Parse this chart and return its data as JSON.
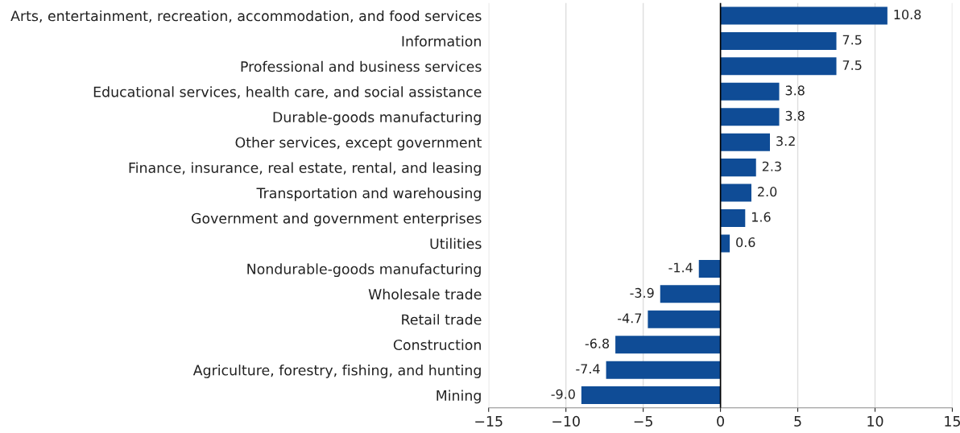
{
  "chart_data": {
    "type": "bar",
    "orientation": "horizontal",
    "categories": [
      "Arts, entertainment, recreation, accommodation, and food services",
      "Information",
      "Professional and business services",
      "Educational services, health care, and social assistance",
      "Durable-goods manufacturing",
      "Other services, except government",
      "Finance, insurance, real estate, rental, and leasing",
      "Transportation and warehousing",
      "Government and government enterprises",
      "Utilities",
      "Nondurable-goods manufacturing",
      "Wholesale trade",
      "Retail trade",
      "Construction",
      "Agriculture, forestry, fishing, and hunting",
      "Mining"
    ],
    "values": [
      10.8,
      7.5,
      7.5,
      3.8,
      3.8,
      3.2,
      2.3,
      2.0,
      1.6,
      0.6,
      -1.4,
      -3.9,
      -4.7,
      -6.8,
      -7.4,
      -9.0
    ],
    "color": "#0f4c96",
    "xlim": [
      -15,
      15
    ],
    "xticks": [
      {
        "value": -15,
        "label": "−15"
      },
      {
        "value": -10,
        "label": "−10"
      },
      {
        "value": -5,
        "label": "−5"
      },
      0,
      5,
      10,
      15
    ],
    "grid": "x",
    "value_labels": [
      "10.8",
      "7.5",
      "7.5",
      "3.8",
      "3.8",
      "3.2",
      "2.3",
      "2.0",
      "1.6",
      "0.6",
      "-1.4",
      "-3.9",
      "-4.7",
      "-6.8",
      "-7.4",
      "-9.0"
    ],
    "ref_lines": [
      {
        "axis": "x",
        "value": 0,
        "color": "#000000"
      }
    ]
  }
}
